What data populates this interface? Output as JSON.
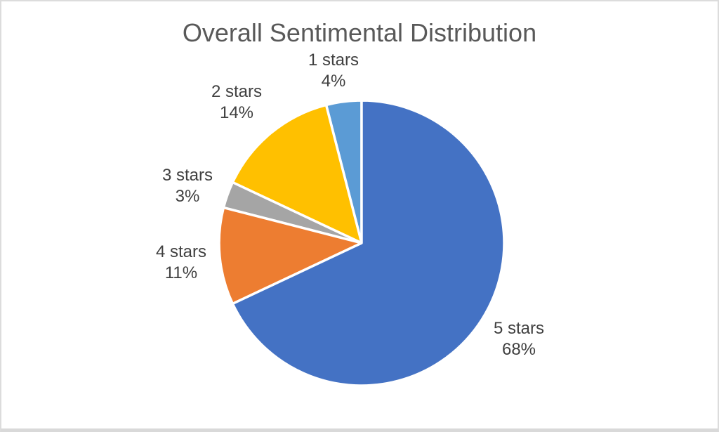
{
  "page": {
    "background_color": "#FFFFFF",
    "frame_border_color": "#D9D9D9"
  },
  "chart": {
    "title_color": "#595959",
    "label_color": "#404040"
  },
  "chart_data": {
    "type": "pie",
    "title": "Overall Sentimental Distribution",
    "categories": [
      "1 stars",
      "2 stars",
      "3 stars",
      "4 stars",
      "5 stars"
    ],
    "values": [
      4,
      14,
      3,
      11,
      68
    ],
    "unit": "percent",
    "colors": [
      "#5B9BD5",
      "#FFC000",
      "#A5A5A5",
      "#ED7D31",
      "#4472C4"
    ],
    "slice_border_color": "#FFFFFF",
    "start_angle_deg": 90,
    "direction": "counterclockwise",
    "legend": "none",
    "label_style": "category name and percentage outside each slice",
    "labels": [
      {
        "name": "1 stars",
        "pct": "4%"
      },
      {
        "name": "2 stars",
        "pct": "14%"
      },
      {
        "name": "3 stars",
        "pct": "3%"
      },
      {
        "name": "4 stars",
        "pct": "11%"
      },
      {
        "name": "5 stars",
        "pct": "68%"
      }
    ]
  }
}
